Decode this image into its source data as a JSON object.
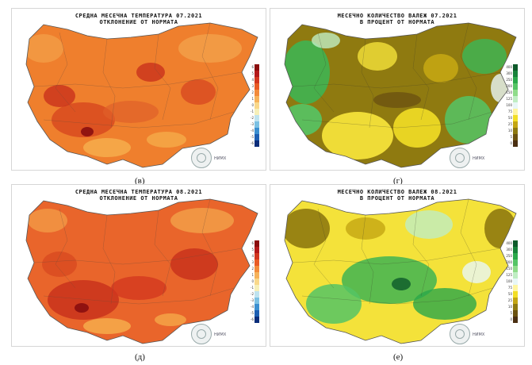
{
  "panels": [
    {
      "title1": "СРЕДНА МЕСЕЧНА ТЕМПЕРАТУРА 07.2021",
      "title2": "ОТКЛОНЕНИЕ ОТ НОРМАТА",
      "label": "(в)",
      "type": "temp"
    },
    {
      "title1": "МЕСЕЧНО КОЛИЧЕСТВО ВАЛЕЖ 07.2021",
      "title2": "В ПРОЦЕНТ ОТ НОРМАТА",
      "label": "(г)",
      "type": "precip"
    },
    {
      "title1": "СРЕДНА МЕСЕЧНА ТЕМПЕРАТУРА 08.2021",
      "title2": "ОТКЛОНЕНИЕ ОТ НОРМАТА",
      "label": "(д)",
      "type": "temp"
    },
    {
      "title1": "МЕСЕЧНО КОЛИЧЕСТВО ВАЛЕЖ 08.2021",
      "title2": "В ПРОЦЕНТ ОТ НОРМАТА",
      "label": "(е)",
      "type": "precip"
    }
  ],
  "logo_text": "НИМХ",
  "temp_legend": {
    "colors": [
      "#8a0e0e",
      "#b3191a",
      "#d2361f",
      "#e85a25",
      "#f28a3a",
      "#f6b25a",
      "#f9d88a",
      "#f6efb8",
      "#bfe3ef",
      "#7cc1e3",
      "#3b8fd0",
      "#1d5fb2",
      "#0b2d7a"
    ],
    "labels": [
      "6",
      "5",
      "4",
      "3",
      "2",
      "1",
      "0",
      "-1",
      "-2",
      "-3",
      "-4",
      "-5",
      "-6"
    ]
  },
  "precip_legend": {
    "colors": [
      "#0d5a2a",
      "#17823a",
      "#2aa84a",
      "#55c465",
      "#8fdc8a",
      "#bfeec3",
      "#e8f7f7",
      "#fff5a0",
      "#f2de26",
      "#c4a613",
      "#8f7a10",
      "#6b5210",
      "#4a2f12"
    ],
    "labels": [
      "400",
      "300",
      "250",
      "200",
      "150",
      "125",
      "100",
      "75",
      "50",
      "25",
      "10",
      "5",
      "0"
    ]
  },
  "colors": {
    "temp_base": "#ef7f2d",
    "temp_hot": "#c9321c",
    "temp_warm": "#f6b04d",
    "precip_dry": "#8f7a10",
    "precip_yellow": "#f4e23a",
    "precip_green": "#3fb452"
  }
}
